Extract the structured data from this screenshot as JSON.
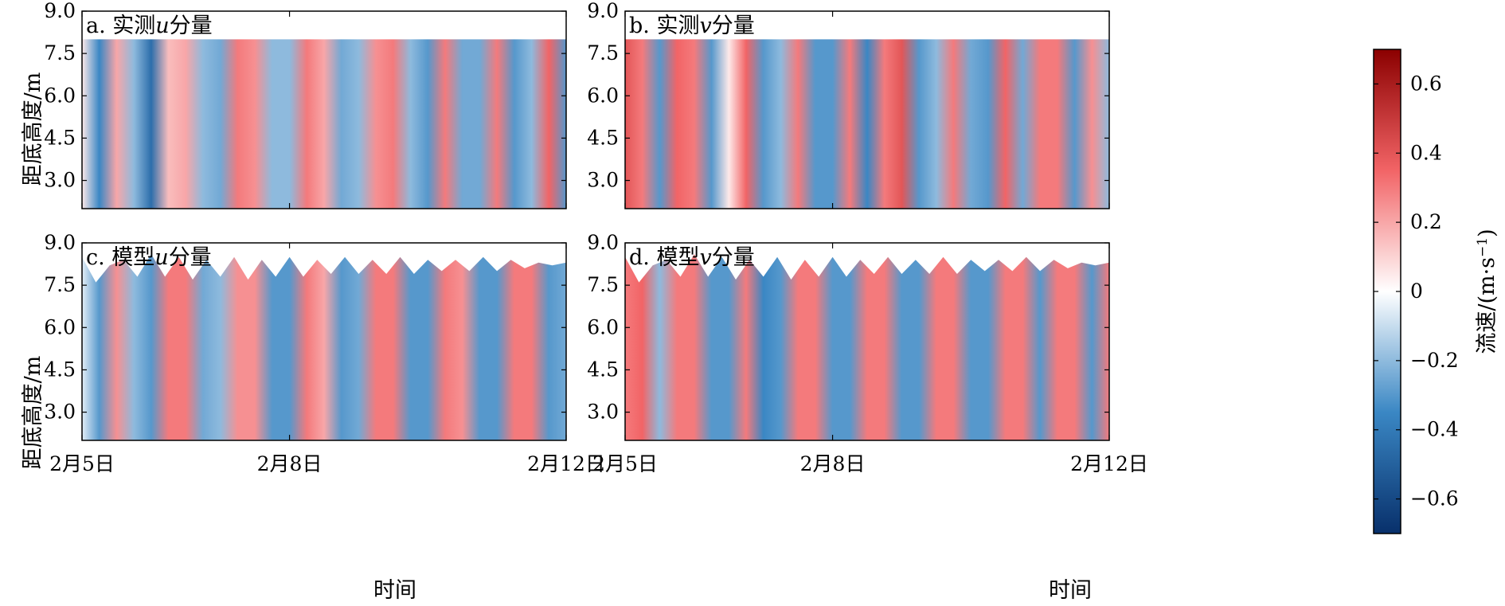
{
  "chart_data": [
    {
      "id": "a",
      "type": "heatmap",
      "title": "a. 实测u分量",
      "title_parts": {
        "prefix": "a. 实测",
        "var": "u",
        "suffix": "分量"
      },
      "ylabel": "距底高度/m",
      "xlabel": "",
      "ylim": [
        2.0,
        9.0
      ],
      "yticks": [
        "9.0",
        "7.5",
        "6.0",
        "4.5",
        "3.0"
      ],
      "ytick_values": [
        9.0,
        7.5,
        6.0,
        4.5,
        3.0
      ],
      "xticks": [],
      "xlim": [
        "2月5日",
        "2月12日"
      ],
      "data_top_m": 8.0,
      "value_range": [
        -0.7,
        0.7
      ],
      "time_days": [
        0.0,
        0.25,
        0.5,
        0.75,
        1.0,
        1.25,
        1.5,
        1.75,
        2.0,
        2.25,
        2.5,
        2.75,
        3.0,
        3.25,
        3.5,
        3.75,
        4.0,
        4.25,
        4.5,
        4.75,
        5.0,
        5.25,
        5.5,
        5.75,
        6.0,
        6.25,
        6.5,
        6.75,
        7.0
      ],
      "velocity": [
        0.05,
        -0.35,
        0.2,
        -0.2,
        -0.45,
        0.15,
        0.2,
        -0.2,
        -0.25,
        0.3,
        0.25,
        -0.2,
        -0.2,
        0.3,
        0.2,
        -0.25,
        -0.2,
        0.25,
        0.3,
        -0.2,
        -0.3,
        0.3,
        -0.25,
        -0.25,
        0.3,
        -0.3,
        -0.2,
        0.35,
        -0.3
      ]
    },
    {
      "id": "b",
      "type": "heatmap",
      "title": "b. 实测v分量",
      "title_parts": {
        "prefix": "b. 实测",
        "var": "v",
        "suffix": "分量"
      },
      "ylabel": "",
      "xlabel": "",
      "ylim": [
        2.0,
        9.0
      ],
      "yticks": [
        "9.0",
        "7.5",
        "6.0",
        "4.5",
        "3.0"
      ],
      "ytick_values": [
        9.0,
        7.5,
        6.0,
        4.5,
        3.0
      ],
      "xticks": [],
      "xlim": [
        "2月5日",
        "2月12日"
      ],
      "data_top_m": 8.0,
      "value_range": [
        -0.7,
        0.7
      ],
      "time_days": [
        0.0,
        0.25,
        0.5,
        0.75,
        1.0,
        1.25,
        1.5,
        1.75,
        2.0,
        2.25,
        2.5,
        2.75,
        3.0,
        3.25,
        3.5,
        3.75,
        4.0,
        4.25,
        4.5,
        4.75,
        5.0,
        5.25,
        5.5,
        5.75,
        6.0,
        6.25,
        6.5,
        6.75,
        7.0
      ],
      "velocity": [
        0.4,
        0.3,
        -0.3,
        0.35,
        0.3,
        -0.3,
        0.05,
        0.35,
        -0.3,
        -0.2,
        0.3,
        -0.3,
        -0.3,
        0.3,
        -0.35,
        0.3,
        0.4,
        -0.3,
        -0.2,
        0.3,
        -0.25,
        -0.3,
        0.35,
        -0.25,
        0.3,
        0.3,
        -0.3,
        0.25,
        -0.2
      ]
    },
    {
      "id": "c",
      "type": "heatmap",
      "title": "c. 模型u分量",
      "title_parts": {
        "prefix": "c. 模型",
        "var": "u",
        "suffix": "分量"
      },
      "ylabel": "距底高度/m",
      "xlabel": "时间",
      "ylim": [
        2.0,
        9.0
      ],
      "yticks": [
        "9.0",
        "7.5",
        "6.0",
        "4.5",
        "3.0"
      ],
      "ytick_values": [
        9.0,
        7.5,
        6.0,
        4.5,
        3.0
      ],
      "xticks": [
        "2月5日",
        "2月8日",
        "2月12日"
      ],
      "xtick_days": [
        0,
        3,
        7
      ],
      "xlim": [
        "2月5日",
        "2月12日"
      ],
      "value_range": [
        -0.7,
        0.7
      ],
      "surface_days": [
        0.0,
        0.2,
        0.4,
        0.6,
        0.8,
        1.0,
        1.2,
        1.4,
        1.6,
        1.8,
        2.0,
        2.2,
        2.4,
        2.6,
        2.8,
        3.0,
        3.2,
        3.4,
        3.6,
        3.8,
        4.0,
        4.2,
        4.4,
        4.6,
        4.8,
        5.0,
        5.2,
        5.4,
        5.6,
        5.8,
        6.0,
        6.2,
        6.4,
        6.6,
        6.8,
        7.0
      ],
      "surface_m": [
        8.5,
        7.6,
        8.2,
        8.4,
        7.8,
        8.6,
        7.8,
        8.5,
        7.7,
        8.4,
        7.8,
        8.5,
        7.7,
        8.4,
        7.8,
        8.5,
        7.8,
        8.4,
        7.9,
        8.5,
        7.9,
        8.4,
        7.9,
        8.5,
        7.9,
        8.4,
        8.0,
        8.4,
        8.0,
        8.5,
        8.0,
        8.4,
        8.1,
        8.3,
        8.2,
        8.3
      ],
      "time_days": [
        0.0,
        0.25,
        0.5,
        0.75,
        1.0,
        1.25,
        1.5,
        1.75,
        2.0,
        2.25,
        2.5,
        2.75,
        3.0,
        3.25,
        3.5,
        3.75,
        4.0,
        4.25,
        4.5,
        4.75,
        5.0,
        5.25,
        5.5,
        5.75,
        6.0,
        6.25,
        6.5,
        6.75,
        7.0
      ],
      "velocity": [
        -0.05,
        -0.3,
        0.25,
        -0.2,
        -0.3,
        0.3,
        0.3,
        -0.25,
        -0.2,
        0.25,
        0.25,
        -0.3,
        -0.3,
        0.3,
        0.2,
        -0.3,
        -0.25,
        0.3,
        0.3,
        -0.3,
        -0.3,
        0.3,
        0.25,
        -0.3,
        -0.3,
        0.3,
        0.3,
        -0.3,
        -0.25
      ]
    },
    {
      "id": "d",
      "type": "heatmap",
      "title": "d. 模型v分量",
      "title_parts": {
        "prefix": "d. 模型",
        "var": "v",
        "suffix": "分量"
      },
      "ylabel": "",
      "xlabel": "时间",
      "ylim": [
        2.0,
        9.0
      ],
      "yticks": [
        "9.0",
        "7.5",
        "6.0",
        "4.5",
        "3.0"
      ],
      "ytick_values": [
        9.0,
        7.5,
        6.0,
        4.5,
        3.0
      ],
      "xticks": [
        "2月5日",
        "2月8日",
        "2月12日"
      ],
      "xtick_days": [
        0,
        3,
        7
      ],
      "xlim": [
        "2月5日",
        "2月12日"
      ],
      "value_range": [
        -0.7,
        0.7
      ],
      "surface_days": [
        0.0,
        0.2,
        0.4,
        0.6,
        0.8,
        1.0,
        1.2,
        1.4,
        1.6,
        1.8,
        2.0,
        2.2,
        2.4,
        2.6,
        2.8,
        3.0,
        3.2,
        3.4,
        3.6,
        3.8,
        4.0,
        4.2,
        4.4,
        4.6,
        4.8,
        5.0,
        5.2,
        5.4,
        5.6,
        5.8,
        6.0,
        6.2,
        6.4,
        6.6,
        6.8,
        7.0
      ],
      "surface_m": [
        8.5,
        7.6,
        8.2,
        8.4,
        7.8,
        8.6,
        7.8,
        8.5,
        7.7,
        8.4,
        7.8,
        8.5,
        7.7,
        8.4,
        7.8,
        8.5,
        7.8,
        8.4,
        7.9,
        8.5,
        7.9,
        8.4,
        7.9,
        8.5,
        7.9,
        8.4,
        8.0,
        8.4,
        8.0,
        8.5,
        8.0,
        8.4,
        8.1,
        8.3,
        8.2,
        8.3
      ],
      "time_days": [
        0.0,
        0.25,
        0.5,
        0.75,
        1.0,
        1.25,
        1.5,
        1.75,
        2.0,
        2.25,
        2.5,
        2.75,
        3.0,
        3.25,
        3.5,
        3.75,
        4.0,
        4.25,
        4.5,
        4.75,
        5.0,
        5.25,
        5.5,
        5.75,
        6.0,
        6.25,
        6.5,
        6.75,
        7.0
      ],
      "velocity": [
        0.3,
        0.35,
        -0.2,
        0.3,
        0.3,
        -0.3,
        -0.3,
        0.3,
        -0.35,
        -0.3,
        0.3,
        0.3,
        -0.3,
        -0.3,
        0.3,
        0.3,
        -0.3,
        -0.3,
        0.3,
        0.3,
        -0.3,
        -0.3,
        0.3,
        0.3,
        -0.3,
        0.3,
        0.3,
        -0.3,
        0.3
      ]
    }
  ],
  "colorbar": {
    "label": "流速/(m·s⁻¹)",
    "label_main": "流速/(m·s",
    "label_sup": "−1",
    "label_end": ")",
    "range": [
      -0.7,
      0.7
    ],
    "ticks": [
      "0.6",
      "0.4",
      "0.2",
      "0",
      "−0.2",
      "−0.4",
      "−0.6"
    ],
    "tick_values": [
      0.6,
      0.4,
      0.2,
      0.0,
      -0.2,
      -0.4,
      -0.6
    ],
    "colors": {
      "negative_max": "#08306b",
      "negative_mid": "#3a87c4",
      "zero": "#ffffff",
      "positive_mid": "#f26466",
      "positive_max": "#8b0000"
    }
  }
}
